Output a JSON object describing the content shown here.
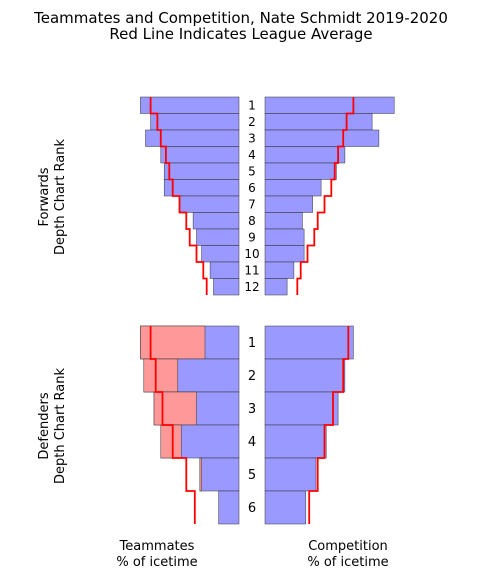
{
  "title": {
    "line1": "Teammates and Competition, Nate Schmidt 2019-2020",
    "line2": "Red Line Indicates League Average"
  },
  "colors": {
    "bar_blue": "#9999ff",
    "bar_pink": "#ff9999",
    "edge": "#333333",
    "league_line": "#ff0000"
  },
  "chart_data": [
    {
      "type": "bar",
      "name": "forwards",
      "ylabel_line1": "Forwards",
      "ylabel_line2": "Depth Chart Rank",
      "categories": [
        "1",
        "2",
        "3",
        "4",
        "5",
        "6",
        "7",
        "8",
        "9",
        "10",
        "11",
        "12"
      ],
      "teammates": {
        "player_pct": [
          0.58,
          0.52,
          0.55,
          0.46,
          0.44,
          0.44,
          0.35,
          0.27,
          0.25,
          0.22,
          0.17,
          0.15
        ],
        "league_avg": [
          0.52,
          0.48,
          0.46,
          0.43,
          0.41,
          0.39,
          0.35,
          0.31,
          0.29,
          0.25,
          0.21,
          0.19
        ]
      },
      "competition": {
        "player_pct": [
          0.76,
          0.63,
          0.67,
          0.47,
          0.42,
          0.33,
          0.28,
          0.22,
          0.23,
          0.23,
          0.17,
          0.13
        ],
        "league_avg": [
          0.52,
          0.48,
          0.46,
          0.43,
          0.41,
          0.39,
          0.35,
          0.31,
          0.29,
          0.25,
          0.21,
          0.19
        ]
      }
    },
    {
      "type": "bar",
      "name": "defenders",
      "ylabel_line1": "Defenders",
      "ylabel_line2": "Depth Chart Rank",
      "categories": [
        "1",
        "2",
        "3",
        "4",
        "5",
        "6"
      ],
      "teammates": {
        "player_pct": [
          0.58,
          0.56,
          0.5,
          0.46,
          0.23,
          0.12
        ],
        "league_avg": [
          0.52,
          0.49,
          0.45,
          0.39,
          0.31,
          0.26
        ],
        "pink_highlight": [
          0.38,
          0.2,
          0.25,
          0.12,
          0.01,
          0
        ]
      },
      "competition": {
        "player_pct": [
          0.52,
          0.47,
          0.43,
          0.36,
          0.3,
          0.24
        ],
        "league_avg": [
          0.49,
          0.46,
          0.4,
          0.35,
          0.31,
          0.26
        ]
      }
    }
  ],
  "xlabels": {
    "left_line1": "Teammates",
    "left_line2": "% of icetime",
    "right_line1": "Competition",
    "right_line2": "% of icetime"
  }
}
